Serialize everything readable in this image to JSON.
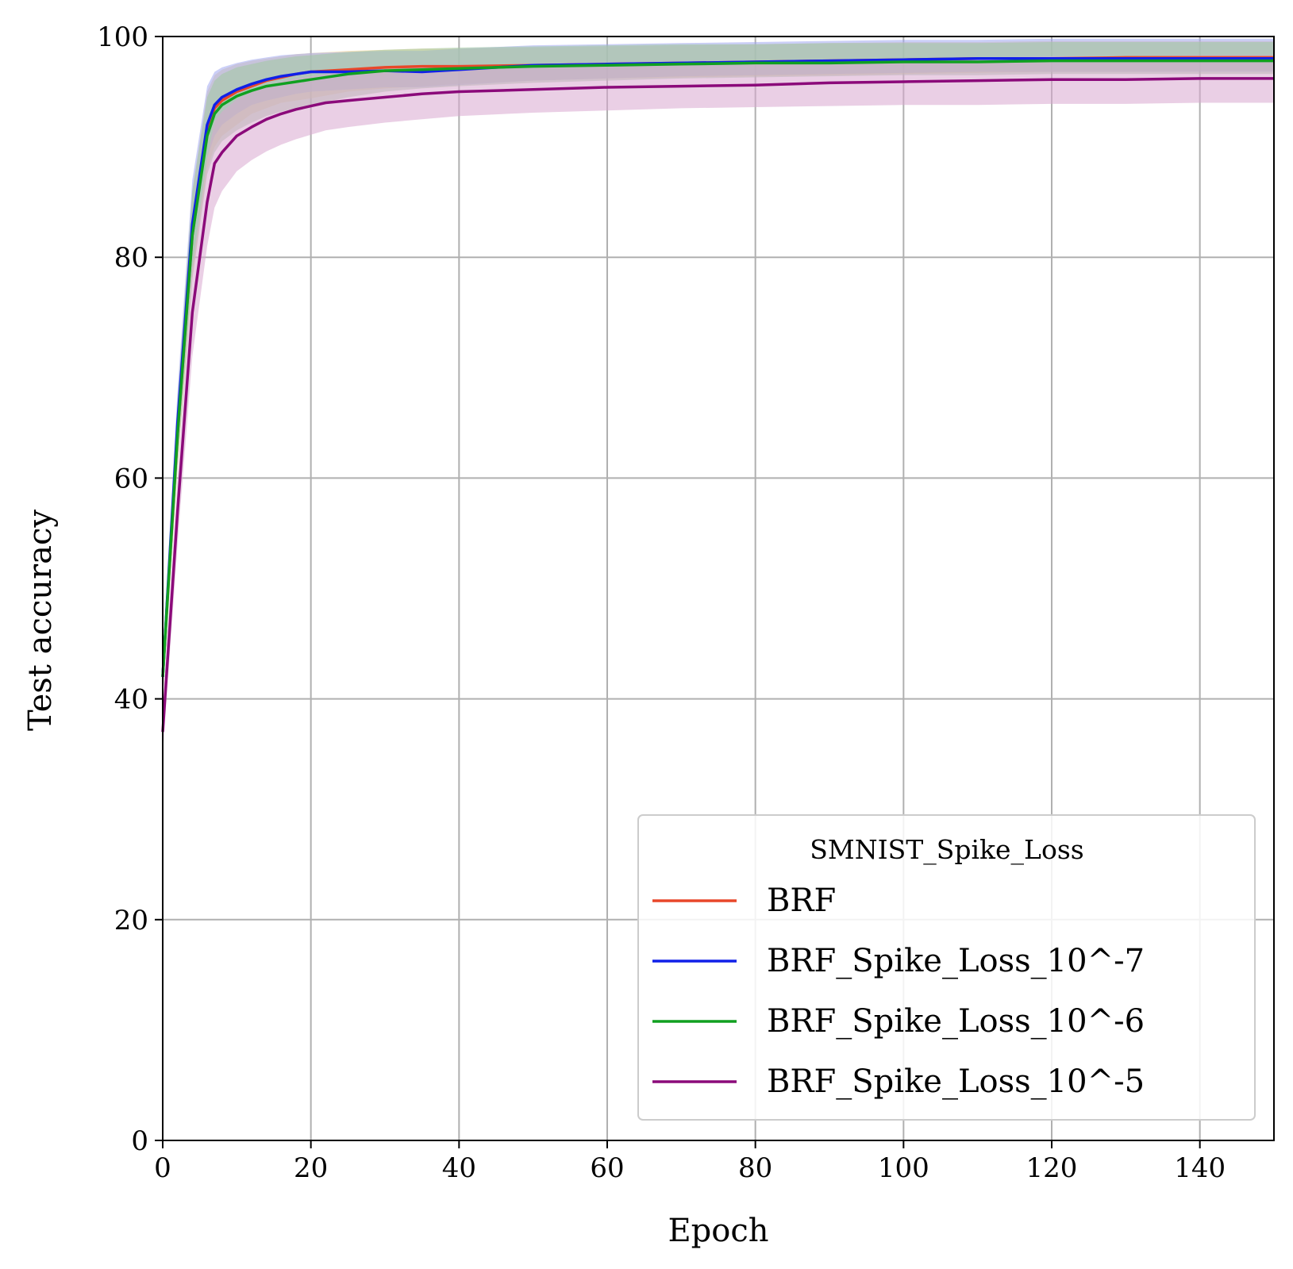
{
  "chart_data": {
    "type": "line",
    "title": "",
    "xlabel": "Epoch",
    "ylabel": "Test accuracy",
    "xlim": [
      0,
      150
    ],
    "ylim": [
      0,
      100
    ],
    "xticks": [
      0,
      20,
      40,
      60,
      80,
      100,
      120,
      140
    ],
    "yticks": [
      0,
      20,
      40,
      60,
      80,
      100
    ],
    "xtick_labels": [
      "0",
      "20",
      "40",
      "60",
      "80",
      "100",
      "120",
      "140"
    ],
    "ytick_labels": [
      "0",
      "20",
      "40",
      "60",
      "80",
      "100"
    ],
    "grid": true,
    "legend": {
      "title": "SMNIST_Spike_Loss",
      "placement": "lower-right"
    },
    "series": [
      {
        "name": "BRF",
        "color": "#e8472a",
        "band_color": "#f0d090",
        "x": [
          0,
          2,
          4,
          6,
          7,
          8,
          10,
          12,
          14,
          16,
          18,
          20,
          25,
          30,
          35,
          40,
          50,
          60,
          70,
          80,
          90,
          100,
          110,
          120,
          130,
          140,
          150
        ],
        "y": [
          42,
          64,
          82,
          91.5,
          93.5,
          94.2,
          95.0,
          95.5,
          96.0,
          96.3,
          96.6,
          96.8,
          97.0,
          97.2,
          97.3,
          97.3,
          97.4,
          97.5,
          97.6,
          97.7,
          97.8,
          97.9,
          98.0,
          98.0,
          98.1,
          98.1,
          98.1
        ],
        "lower": [
          40,
          61,
          78,
          88,
          90,
          91,
          92,
          93,
          93.5,
          94,
          94.2,
          94.4,
          95,
          95.3,
          95.5,
          95.7,
          96,
          96.2,
          96.3,
          96.4,
          96.5,
          96.6,
          96.7,
          96.8,
          96.8,
          96.9,
          96.9
        ],
        "upper": [
          44,
          67,
          86,
          95,
          96.5,
          97,
          97.5,
          97.8,
          98,
          98.2,
          98.4,
          98.5,
          98.7,
          98.8,
          98.9,
          98.9,
          99,
          99.1,
          99.2,
          99.3,
          99.4,
          99.5,
          99.5,
          99.6,
          99.6,
          99.6,
          99.6
        ]
      },
      {
        "name": "BRF_Spike_Loss_10^-7",
        "color": "#1020e8",
        "band_color": "#a0a8f0",
        "x": [
          0,
          2,
          4,
          6,
          7,
          8,
          10,
          12,
          14,
          16,
          18,
          20,
          25,
          30,
          35,
          40,
          50,
          60,
          70,
          80,
          90,
          100,
          110,
          120,
          130,
          140,
          150
        ],
        "y": [
          42,
          65,
          83,
          92.0,
          93.8,
          94.5,
          95.2,
          95.7,
          96.1,
          96.4,
          96.6,
          96.8,
          96.8,
          96.9,
          96.8,
          97.0,
          97.4,
          97.5,
          97.6,
          97.7,
          97.8,
          97.9,
          98.0,
          98.0,
          98.0,
          98.0,
          98.0
        ],
        "lower": [
          40,
          62,
          79,
          89,
          91,
          92,
          93,
          93.8,
          94.2,
          94.5,
          94.8,
          95,
          95.2,
          95.4,
          95.4,
          95.6,
          96,
          96.2,
          96.4,
          96.5,
          96.6,
          96.7,
          96.8,
          96.8,
          96.8,
          96.8,
          96.8
        ],
        "upper": [
          44,
          68,
          87,
          95.5,
          96.8,
          97.2,
          97.6,
          97.9,
          98.1,
          98.3,
          98.4,
          98.5,
          98.6,
          98.7,
          98.7,
          98.9,
          99.2,
          99.3,
          99.4,
          99.5,
          99.6,
          99.7,
          99.7,
          99.8,
          99.8,
          99.8,
          99.8
        ]
      },
      {
        "name": "BRF_Spike_Loss_10^-6",
        "color": "#10a020",
        "band_color": "#a0c8a0",
        "x": [
          0,
          2,
          4,
          6,
          7,
          8,
          10,
          12,
          14,
          16,
          18,
          20,
          25,
          30,
          35,
          40,
          50,
          60,
          70,
          80,
          90,
          100,
          110,
          120,
          130,
          140,
          150
        ],
        "y": [
          42,
          64,
          82,
          91.0,
          93.0,
          93.8,
          94.6,
          95.1,
          95.5,
          95.7,
          95.9,
          96.1,
          96.6,
          96.9,
          97.0,
          97.1,
          97.3,
          97.4,
          97.5,
          97.6,
          97.6,
          97.7,
          97.7,
          97.8,
          97.8,
          97.8,
          97.8
        ],
        "lower": [
          40,
          61,
          78,
          87.5,
          89.5,
          90.5,
          91.5,
          92.2,
          92.8,
          93.2,
          93.5,
          93.8,
          94.5,
          95,
          95.3,
          95.5,
          95.8,
          96,
          96.2,
          96.3,
          96.4,
          96.5,
          96.5,
          96.6,
          96.6,
          96.6,
          96.6
        ],
        "upper": [
          44,
          67,
          86,
          94.5,
          96,
          96.6,
          97.2,
          97.5,
          97.8,
          98,
          98.2,
          98.3,
          98.6,
          98.8,
          98.9,
          99,
          99.1,
          99.2,
          99.3,
          99.3,
          99.4,
          99.4,
          99.4,
          99.5,
          99.5,
          99.5,
          99.5
        ]
      },
      {
        "name": "BRF_Spike_Loss_10^-5",
        "color": "#8b0a7a",
        "band_color": "#d8a8d0",
        "x": [
          0,
          2,
          4,
          6,
          7,
          8,
          10,
          12,
          14,
          16,
          18,
          20,
          22,
          25,
          30,
          35,
          40,
          50,
          60,
          70,
          80,
          90,
          100,
          110,
          120,
          130,
          140,
          150
        ],
        "y": [
          37,
          57,
          75,
          85.0,
          88.5,
          89.5,
          91.0,
          91.8,
          92.5,
          93.0,
          93.4,
          93.7,
          94.0,
          94.2,
          94.5,
          94.8,
          95.0,
          95.2,
          95.4,
          95.5,
          95.6,
          95.8,
          95.9,
          96.0,
          96.1,
          96.1,
          96.2,
          96.2
        ],
        "lower": [
          35,
          54,
          71,
          81,
          84.5,
          86,
          87.8,
          88.8,
          89.6,
          90.2,
          90.7,
          91.1,
          91.5,
          91.8,
          92.2,
          92.5,
          92.8,
          93.1,
          93.3,
          93.5,
          93.6,
          93.7,
          93.8,
          93.8,
          93.9,
          93.9,
          94.0,
          94.0
        ],
        "upper": [
          39,
          60,
          79,
          89,
          92.3,
          93.2,
          94.3,
          95,
          95.5,
          95.9,
          96.2,
          96.4,
          96.6,
          96.8,
          97,
          97.2,
          97.3,
          97.5,
          97.6,
          97.7,
          97.8,
          97.9,
          98,
          98.1,
          98.2,
          98.2,
          98.3,
          98.3
        ]
      }
    ]
  }
}
